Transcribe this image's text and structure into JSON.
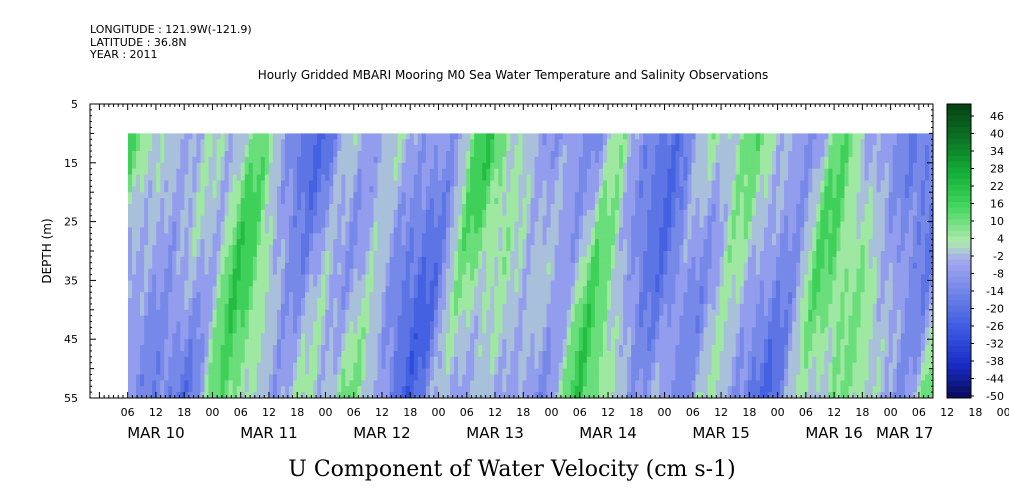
{
  "meta": {
    "longitude": "LONGITUDE : 121.9W(-121.9)",
    "latitude": "LATITUDE : 36.8N",
    "year": "YEAR : 2011"
  },
  "chart_data": {
    "type": "heatmap",
    "title": "Hourly Gridded MBARI Mooring M0 Sea Water Temperature and Salinity Observations",
    "xlabel": "U Component of Water Velocity (cm s-1)",
    "ylabel": "DEPTH (m)",
    "ylim": [
      55,
      5
    ],
    "y_ticks": [
      5,
      15,
      25,
      35,
      45,
      55
    ],
    "x_hour_ticks": [
      "06",
      "12",
      "18",
      "00",
      "06",
      "12",
      "18",
      "00",
      "06",
      "12",
      "18",
      "00",
      "06",
      "12",
      "18",
      "00",
      "06",
      "12",
      "18",
      "00",
      "06",
      "12",
      "18",
      "00",
      "06",
      "12",
      "18",
      "00",
      "06",
      "12",
      "18",
      "00"
    ],
    "x_day_labels": [
      "MAR 10",
      "MAR 11",
      "MAR 12",
      "MAR 13",
      "MAR 14",
      "MAR 15",
      "MAR 16",
      "MAR 17"
    ],
    "data_depth_range": [
      10,
      55
    ],
    "colorbar": {
      "labels": [
        "46",
        "40",
        "34",
        "28",
        "22",
        "16",
        "10",
        "4",
        "-2",
        "-8",
        "-14",
        "-20",
        "-26",
        "-32",
        "-38",
        "-44",
        "-50"
      ],
      "range": [
        -50,
        52
      ]
    }
  }
}
